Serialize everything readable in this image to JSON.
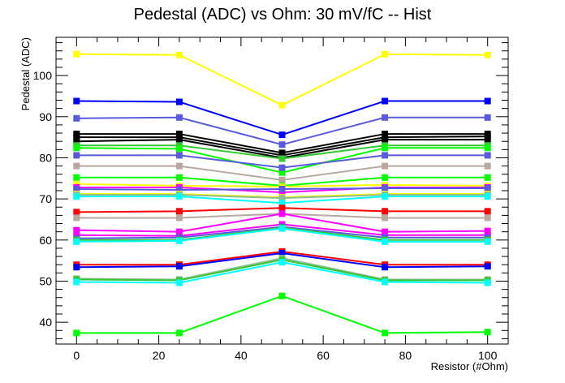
{
  "chart_data": {
    "type": "line",
    "title": "Pedestal (ADC) vs Ohm: 30 mV/fC -- Hist",
    "xlabel": "Resistor (#Ohm)",
    "ylabel": "Pedestal (ADC)",
    "xlim": [
      -5,
      105
    ],
    "ylim": [
      34.7,
      109.3
    ],
    "xticks": [
      0,
      20,
      40,
      60,
      80,
      100
    ],
    "yticks": [
      40,
      50,
      60,
      70,
      80,
      90,
      100
    ],
    "grid": false,
    "legend": "none",
    "x": [
      0,
      25,
      50,
      75,
      100
    ],
    "series": [
      {
        "color": "#ffff00",
        "values": [
          105.2,
          105.0,
          92.8,
          105.2,
          105.0
        ]
      },
      {
        "color": "#0000ff",
        "values": [
          93.8,
          93.6,
          85.6,
          93.8,
          93.8
        ]
      },
      {
        "color": "#5a5adc",
        "values": [
          89.6,
          89.8,
          83.2,
          89.8,
          89.8
        ]
      },
      {
        "color": "#000000",
        "values": [
          85.8,
          85.8,
          81.2,
          85.8,
          85.8
        ]
      },
      {
        "color": "#000000",
        "values": [
          85.0,
          85.0,
          80.6,
          85.0,
          85.2
        ]
      },
      {
        "color": "#000000",
        "values": [
          84.0,
          84.4,
          80.0,
          84.4,
          84.4
        ]
      },
      {
        "color": "#35c835",
        "values": [
          83.0,
          83.0,
          79.8,
          83.0,
          83.0
        ]
      },
      {
        "color": "#00ff00",
        "values": [
          82.4,
          82.2,
          76.4,
          82.4,
          82.4
        ]
      },
      {
        "color": "#5a5adc",
        "values": [
          80.6,
          80.6,
          77.6,
          80.6,
          80.6
        ]
      },
      {
        "color": "#b8a8a0",
        "values": [
          78.0,
          78.0,
          74.6,
          78.0,
          78.0
        ]
      },
      {
        "color": "#00ff00",
        "values": [
          75.2,
          75.2,
          73.2,
          75.2,
          75.2
        ]
      },
      {
        "color": "#ffff00",
        "values": [
          73.6,
          73.2,
          73.0,
          73.4,
          73.2
        ]
      },
      {
        "color": "#ff00ff",
        "values": [
          72.8,
          72.8,
          71.6,
          72.8,
          72.8
        ]
      },
      {
        "color": "#5a5adc",
        "values": [
          72.4,
          72.2,
          72.4,
          72.6,
          72.6
        ]
      },
      {
        "color": "#ffff00",
        "values": [
          71.2,
          71.2,
          70.4,
          71.2,
          71.2
        ]
      },
      {
        "color": "#8fbc8f",
        "values": [
          71.0,
          71.0,
          70.2,
          71.0,
          71.0
        ]
      },
      {
        "color": "#00ffff",
        "values": [
          70.6,
          70.6,
          69.0,
          70.6,
          70.6
        ]
      },
      {
        "color": "#ff0000",
        "values": [
          66.8,
          67.0,
          67.8,
          67.0,
          67.0
        ]
      },
      {
        "color": "#b8a8a0",
        "values": [
          65.4,
          65.4,
          66.4,
          65.4,
          65.4
        ]
      },
      {
        "color": "#ff00ff",
        "values": [
          62.4,
          62.0,
          66.4,
          62.0,
          62.2
        ]
      },
      {
        "color": "#ff00ff",
        "values": [
          61.2,
          61.0,
          63.8,
          61.2,
          61.2
        ]
      },
      {
        "color": "#5a5adc",
        "values": [
          60.4,
          60.6,
          63.2,
          60.6,
          60.6
        ]
      },
      {
        "color": "#35c835",
        "values": [
          60.0,
          60.0,
          63.0,
          60.0,
          60.0
        ]
      },
      {
        "color": "#00ffff",
        "values": [
          59.6,
          59.8,
          62.8,
          59.6,
          59.6
        ]
      },
      {
        "color": "#ff0000",
        "values": [
          54.0,
          54.0,
          57.2,
          54.0,
          54.0
        ]
      },
      {
        "color": "#0000ff",
        "values": [
          53.4,
          53.6,
          56.8,
          53.4,
          53.6
        ]
      },
      {
        "color": "#8fbc8f",
        "values": [
          50.6,
          50.4,
          55.6,
          50.4,
          50.4
        ]
      },
      {
        "color": "#35c835",
        "values": [
          50.4,
          50.2,
          55.2,
          50.2,
          50.2
        ]
      },
      {
        "color": "#00ffff",
        "values": [
          49.8,
          49.6,
          54.6,
          49.8,
          49.6
        ]
      },
      {
        "color": "#00ff00",
        "values": [
          37.4,
          37.4,
          46.4,
          37.4,
          37.6
        ]
      }
    ]
  }
}
